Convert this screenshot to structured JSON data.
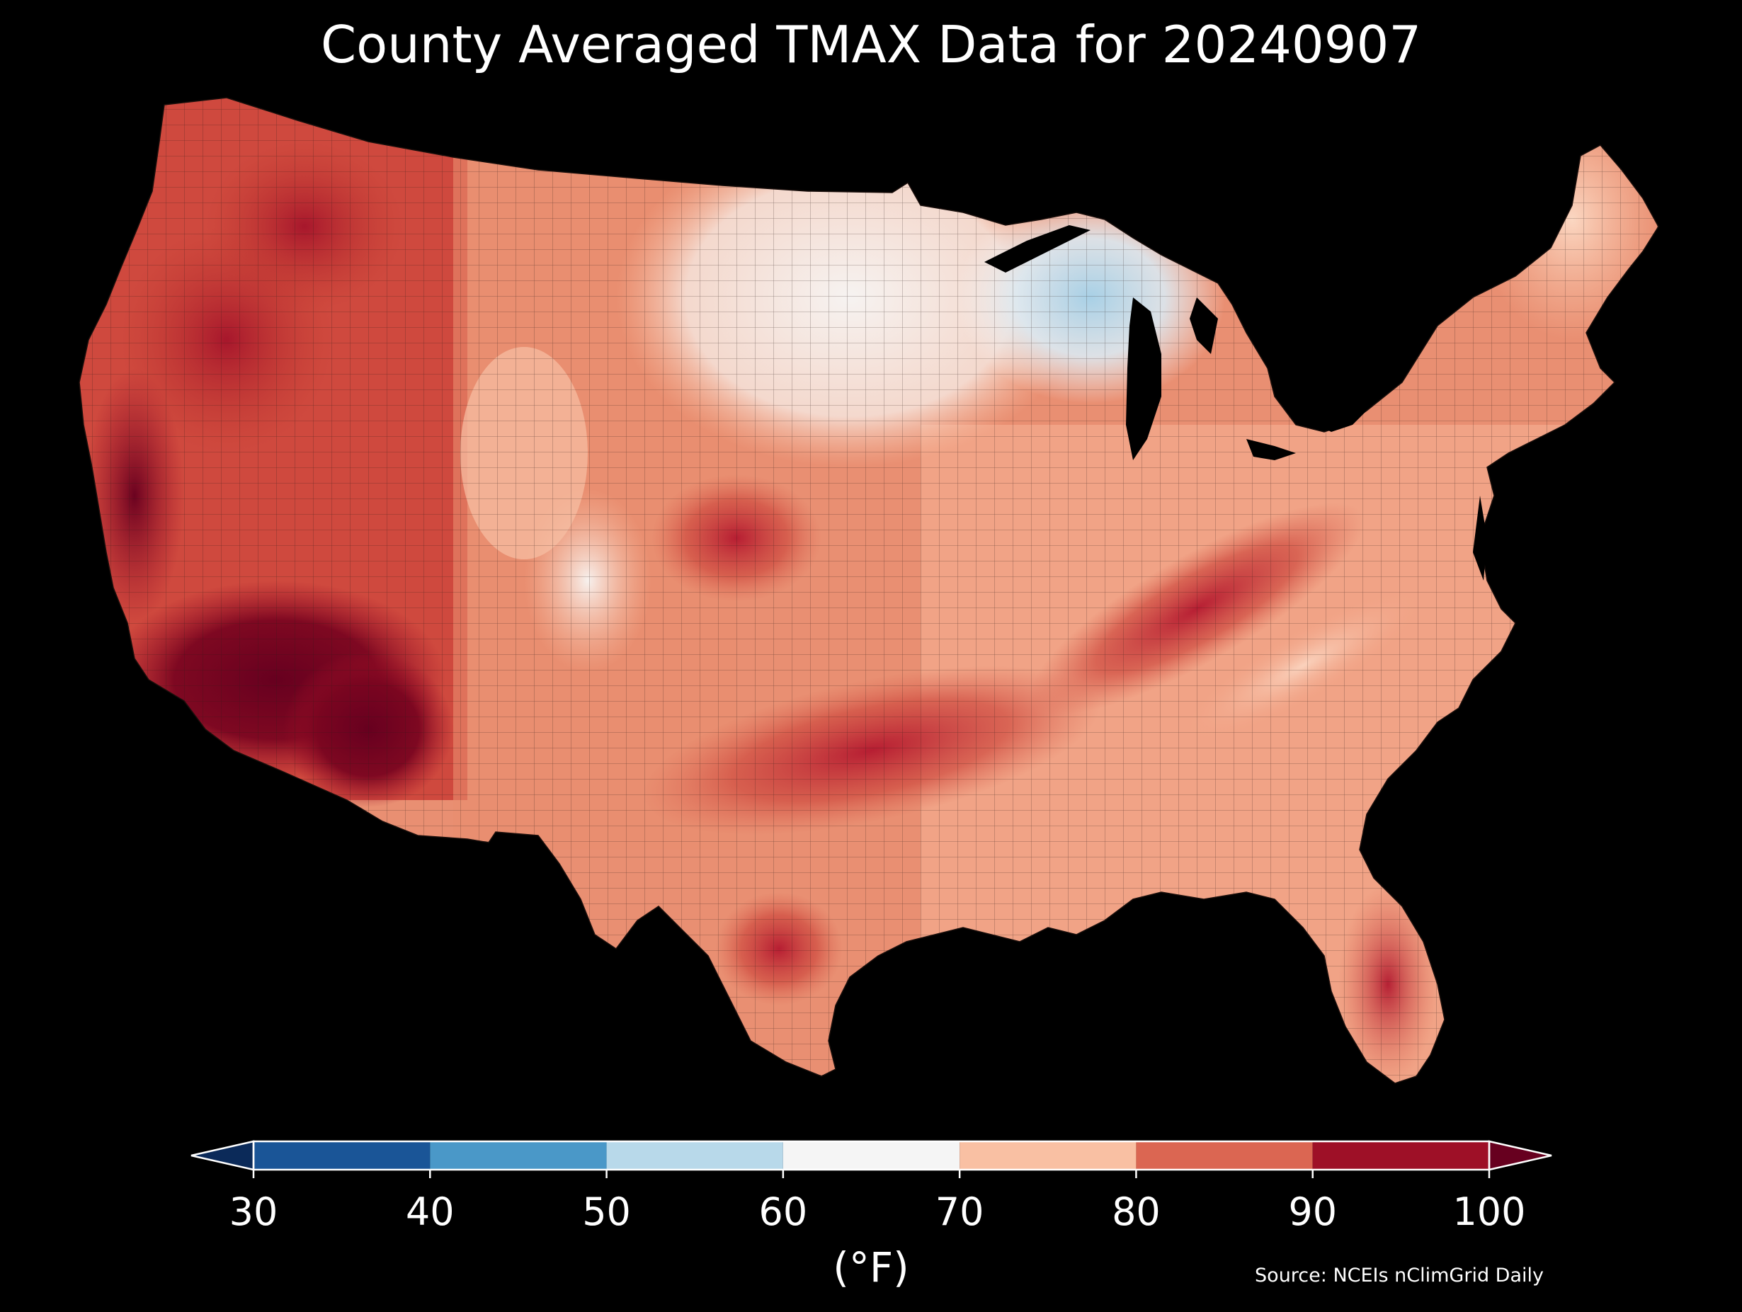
{
  "title": "County Averaged TMAX Data for 20240907",
  "colorbar": {
    "units": "(°F)",
    "ticks": [
      "30",
      "40",
      "50",
      "60",
      "70",
      "80",
      "90",
      "100"
    ],
    "bins": [
      {
        "from": 30,
        "to": 40,
        "color": "#1a5597"
      },
      {
        "from": 40,
        "to": 50,
        "color": "#4a98c8"
      },
      {
        "from": 50,
        "to": 60,
        "color": "#b8d9ea"
      },
      {
        "from": 60,
        "to": 70,
        "color": "#f5f5f5"
      },
      {
        "from": 70,
        "to": 80,
        "color": "#f9c0a3"
      },
      {
        "from": 80,
        "to": 90,
        "color": "#db6652"
      },
      {
        "from": 90,
        "to": 100,
        "color": "#9e1027"
      }
    ],
    "under_color": "#0b2a59",
    "over_color": "#67001f",
    "extend": "both"
  },
  "source": "Source: NCEIs nClimGrid Daily",
  "map": {
    "region": "Contiguous United States",
    "variable": "TMAX",
    "date": "20240907",
    "background": "#000000",
    "county_border_color": "#2a1a16"
  }
}
